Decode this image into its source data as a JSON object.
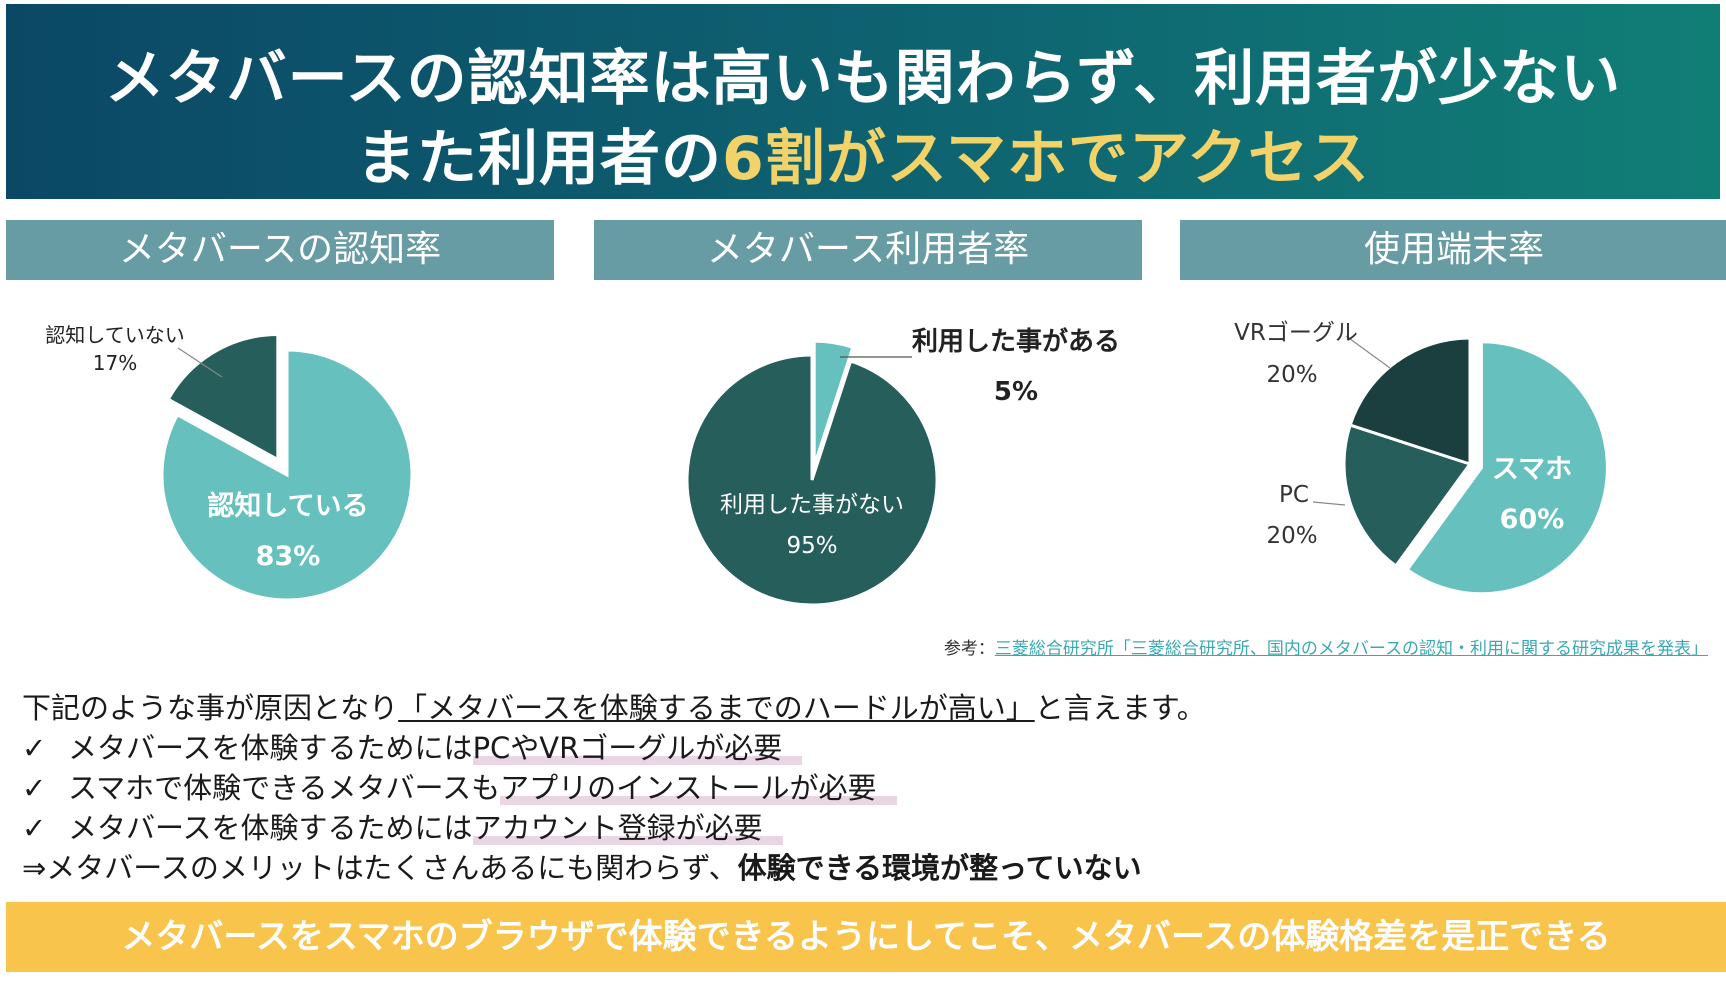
{
  "header": {
    "line1": "メタバースの認知率は高いも関わらず、利用者が少ない",
    "line2_prefix": "また利用者の",
    "line2_highlight": "6割がスマホでアクセス"
  },
  "sections": [
    {
      "title": "メタバースの認知率"
    },
    {
      "title": "メタバース利用者率"
    },
    {
      "title": "使用端末率"
    }
  ],
  "chart_data": [
    {
      "type": "pie",
      "title": "メタバースの認知率",
      "slices": [
        {
          "label": "認知している",
          "value": 83,
          "value_label": "83%",
          "color": "#66c1be"
        },
        {
          "label": "認知していない",
          "value": 17,
          "value_label": "17%",
          "color": "#265e5b"
        }
      ]
    },
    {
      "type": "pie",
      "title": "メタバース利用者率",
      "slices": [
        {
          "label": "利用した事がある",
          "value": 5,
          "value_label": "5%",
          "color": "#66c1be"
        },
        {
          "label": "利用した事がない",
          "value": 95,
          "value_label": "95%",
          "color": "#265e5b"
        }
      ]
    },
    {
      "type": "pie",
      "title": "使用端末率",
      "slices": [
        {
          "label": "スマホ",
          "value": 60,
          "value_label": "60%",
          "color": "#66c1be"
        },
        {
          "label": "PC",
          "value": 20,
          "value_label": "20%",
          "color": "#265e5b"
        },
        {
          "label": "VRゴーグル",
          "value": 20,
          "value_label": "20%",
          "color": "#1b3f3f"
        }
      ]
    }
  ],
  "source": {
    "prefix": "参考：",
    "link_text": "三菱総合研究所「三菱総合研究所、国内のメタバースの認知・利用に関する研究成果を発表」"
  },
  "body": {
    "intro_prefix": "下記のような事が原因となり",
    "intro_underlined": "「メタバースを体験するまでのハードルが高い」",
    "intro_suffix": "と言えます。",
    "check_mark": "✓",
    "bullets": [
      {
        "prefix": "メタバースを体験するためには",
        "marked": "PCやVRゴーグルが必要"
      },
      {
        "prefix": "スマホで体験できるメタバースも",
        "marked": "アプリのインストールが必要"
      },
      {
        "prefix": "メタバースを体験するためには",
        "marked": "アカウント登録が必要"
      }
    ],
    "conclusion_prefix": "⇒メタバースのメリットはたくさんあるにも関わらず、",
    "conclusion_bold": "体験できる環境が整っていない"
  },
  "footer": {
    "text": "メタバースをスマホのブラウザで体験できるようにしてこそ、メタバースの体験格差を是正できる"
  }
}
